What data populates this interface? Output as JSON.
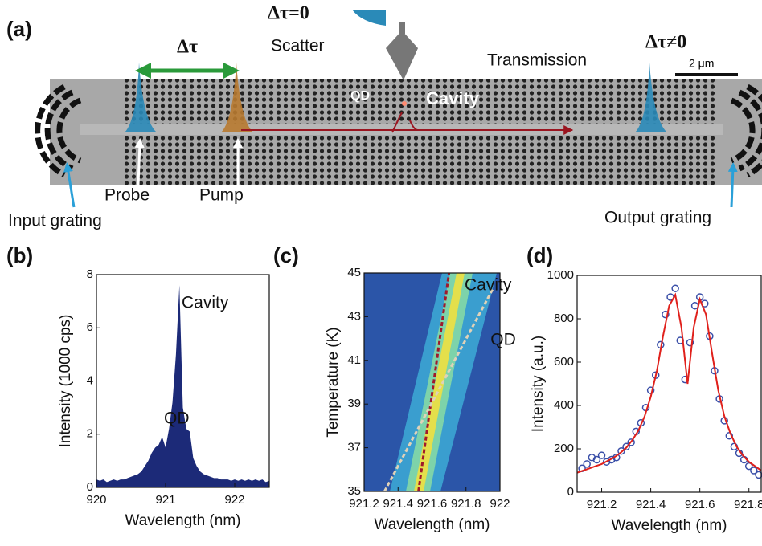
{
  "diagram": {
    "panel_label": "(a)",
    "delay": "Δτ",
    "zero_delay": "Δτ=0",
    "scatter": "Scatter",
    "transmission": "Transmission",
    "nonzero_delay": "Δτ≠0",
    "scale_bar": "2 μm",
    "qd": "QD",
    "cavity": "Cavity",
    "probe": "Probe",
    "pump": "Pump",
    "input_grating": "Input grating",
    "output_grating": "Output grating"
  },
  "chart_data": [
    {
      "type": "area",
      "panel_label": "(b)",
      "xlabel": "Wavelength (nm)",
      "ylabel": "Intensity (1000 cps)",
      "color": "#1c2a78",
      "x": [
        920,
        920.05,
        920.1,
        920.15,
        920.2,
        920.25,
        920.3,
        920.35,
        920.4,
        920.45,
        920.5,
        920.55,
        920.6,
        920.65,
        920.7,
        920.75,
        920.8,
        920.85,
        920.9,
        920.95,
        921,
        921.05,
        921.1,
        921.15,
        921.2,
        921.25,
        921.3,
        921.35,
        921.4,
        921.45,
        921.5,
        921.55,
        921.6,
        921.65,
        921.7,
        921.75,
        921.8,
        921.85,
        921.9,
        921.95,
        922,
        922.05,
        922.1,
        922.15,
        922.2,
        922.25,
        922.3,
        922.35,
        922.4,
        922.45,
        922.5
      ],
      "values": [
        0.3,
        0.25,
        0.3,
        0.2,
        0.25,
        0.3,
        0.25,
        0.3,
        0.3,
        0.35,
        0.4,
        0.45,
        0.5,
        0.6,
        0.8,
        1.0,
        1.3,
        1.5,
        1.6,
        1.9,
        1.5,
        2.2,
        3.2,
        5.0,
        7.6,
        3.0,
        2.2,
        2.1,
        1.1,
        0.8,
        0.6,
        0.5,
        0.45,
        0.4,
        0.35,
        0.35,
        0.3,
        0.3,
        0.3,
        0.25,
        0.3,
        0.25,
        0.3,
        0.25,
        0.3,
        0.25,
        0.3,
        0.25,
        0.3,
        0.2,
        0.25
      ],
      "xlim": [
        920,
        922.5
      ],
      "xticks": [
        920,
        921,
        922
      ],
      "ylim": [
        0,
        8
      ],
      "yticks": [
        0,
        2,
        4,
        6,
        8
      ],
      "annotations": [
        {
          "text": "QD",
          "color": "#1e5a28"
        },
        {
          "text": "Cavity",
          "color": "#a0192b"
        }
      ]
    },
    {
      "type": "line",
      "panel_label": "(c)",
      "xlabel": "Wavelength (nm)",
      "ylabel": "Temperature (K)",
      "xlim": [
        921.2,
        922
      ],
      "xticks": [
        921.2,
        921.4,
        921.6,
        921.8,
        922
      ],
      "ylim": [
        35,
        45
      ],
      "yticks": [
        35,
        37,
        39,
        41,
        43,
        45
      ],
      "series": [
        {
          "name": "Cavity",
          "color": "#a0192b",
          "x": [
            921.52,
            921.7
          ],
          "values": [
            35,
            45
          ]
        },
        {
          "name": "QD",
          "color": "#e0d2b8",
          "x": [
            921.32,
            921.96
          ],
          "values": [
            35,
            44.3
          ]
        }
      ]
    },
    {
      "type": "scatter",
      "panel_label": "(d)",
      "xlabel": "Wavelength (nm)",
      "ylabel": "Intensity (a.u.)",
      "xlim": [
        921.1,
        921.85
      ],
      "xticks": [
        921.2,
        921.4,
        921.6,
        921.8
      ],
      "ylim": [
        0,
        1000
      ],
      "yticks": [
        0,
        200,
        400,
        600,
        800,
        1000
      ],
      "series": [
        {
          "color": "#3a4fa8",
          "kind": "marker",
          "x": [
            921.12,
            921.14,
            921.16,
            921.18,
            921.2,
            921.22,
            921.24,
            921.26,
            921.28,
            921.3,
            921.32,
            921.34,
            921.36,
            921.38,
            921.4,
            921.42,
            921.44,
            921.46,
            921.48,
            921.5,
            921.52,
            921.54,
            921.56,
            921.58,
            921.6,
            921.62,
            921.64,
            921.66,
            921.68,
            921.7,
            921.72,
            921.74,
            921.76,
            921.78,
            921.8,
            921.82,
            921.84
          ],
          "values": [
            110,
            130,
            160,
            150,
            170,
            140,
            150,
            160,
            190,
            210,
            230,
            280,
            320,
            390,
            470,
            540,
            680,
            820,
            900,
            940,
            700,
            520,
            690,
            860,
            900,
            870,
            720,
            560,
            430,
            330,
            260,
            210,
            180,
            150,
            120,
            100,
            80
          ]
        },
        {
          "color": "#e0201b",
          "kind": "line",
          "x": [
            921.1,
            921.125,
            921.15,
            921.175,
            921.2,
            921.225,
            921.25,
            921.275,
            921.3,
            921.325,
            921.35,
            921.375,
            921.4,
            921.425,
            921.45,
            921.475,
            921.5,
            921.525,
            921.55,
            921.575,
            921.6,
            921.625,
            921.65,
            921.675,
            921.7,
            921.725,
            921.75,
            921.775,
            921.8,
            921.825,
            921.85
          ],
          "values": [
            90,
            100,
            110,
            120,
            130,
            145,
            160,
            180,
            205,
            240,
            285,
            350,
            440,
            560,
            720,
            860,
            910,
            760,
            500,
            760,
            890,
            820,
            640,
            470,
            350,
            270,
            210,
            170,
            140,
            120,
            100
          ]
        }
      ]
    }
  ]
}
